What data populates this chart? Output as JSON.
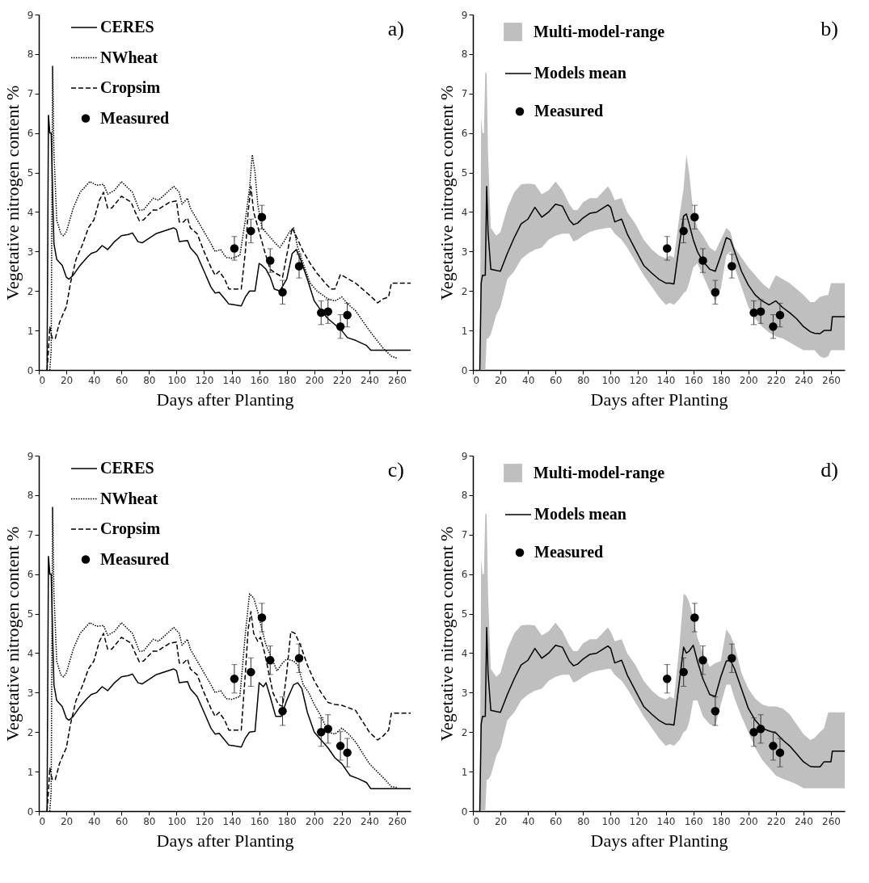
{
  "chart_data": [
    {
      "type": "line",
      "annotations": [
        "a)"
      ],
      "xlabel": "Days after Planting",
      "ylabel": "Vegetative nitrogen content %",
      "xlim": [
        0,
        270
      ],
      "xticks": [
        0,
        20,
        40,
        60,
        80,
        100,
        120,
        140,
        160,
        180,
        200,
        220,
        240,
        260
      ],
      "ylim": [
        0,
        9
      ],
      "yticks": [
        0,
        1,
        2,
        3,
        4,
        5,
        6,
        7,
        8,
        9
      ],
      "legend": "top left",
      "series": [
        {
          "name": "CERES",
          "type": "line",
          "line_style": "solid",
          "color": "#000000",
          "x": [
            6,
            7,
            8,
            9,
            10,
            11,
            13,
            17,
            20,
            22,
            25,
            30,
            35,
            38,
            42,
            46,
            50,
            55,
            60,
            65,
            68,
            72,
            75,
            85,
            98,
            100,
            102,
            108,
            110,
            115,
            120,
            125,
            128,
            131,
            135,
            138,
            142,
            147,
            150,
            153,
            157,
            160,
            162,
            165,
            168,
            171,
            175,
            180,
            184,
            187,
            190,
            195,
            200,
            205,
            210,
            215,
            220,
            224,
            230,
            238,
            241,
            270
          ],
          "values": [
            0,
            6.45,
            6.0,
            6.0,
            4.5,
            3.2,
            2.8,
            2.65,
            2.35,
            2.3,
            2.4,
            2.65,
            2.85,
            2.95,
            3.0,
            3.15,
            3.05,
            3.25,
            3.4,
            3.43,
            3.47,
            3.25,
            3.22,
            3.45,
            3.6,
            3.55,
            3.25,
            3.28,
            3.1,
            2.9,
            2.5,
            2.1,
            1.95,
            1.97,
            1.8,
            1.67,
            1.65,
            1.62,
            1.85,
            2.0,
            2.0,
            2.7,
            2.65,
            2.55,
            2.35,
            2.05,
            2.0,
            2.3,
            2.95,
            3.05,
            2.8,
            2.3,
            1.75,
            1.5,
            1.3,
            1.15,
            1.0,
            0.82,
            0.75,
            0.62,
            0.5,
            0.5
          ]
        },
        {
          "name": "NWheat",
          "type": "line",
          "line_style": "dotted",
          "color": "#000000",
          "x": [
            8,
            9,
            10,
            11,
            13,
            16,
            18,
            20,
            25,
            30,
            37,
            42,
            47,
            50,
            55,
            60,
            65,
            68,
            73,
            76,
            83,
            87,
            98,
            102,
            104,
            108,
            110,
            115,
            120,
            125,
            128,
            132,
            136,
            140,
            146,
            150,
            153,
            155,
            157,
            159,
            162,
            167,
            172,
            175,
            178,
            182,
            185,
            188,
            192,
            197,
            202,
            210,
            215,
            220,
            225,
            230,
            240,
            250,
            256,
            260
          ],
          "values": [
            0,
            0.5,
            7.7,
            5.5,
            3.8,
            3.45,
            3.4,
            3.5,
            4.1,
            4.5,
            4.77,
            4.68,
            4.7,
            4.45,
            4.55,
            4.77,
            4.6,
            4.5,
            4.05,
            4.05,
            4.35,
            4.3,
            4.65,
            4.5,
            4.2,
            4.35,
            4.1,
            3.8,
            3.5,
            3.2,
            3.0,
            3.05,
            2.85,
            2.83,
            2.9,
            3.8,
            4.6,
            5.45,
            5.0,
            4.2,
            3.6,
            3.4,
            3.2,
            3.1,
            3.25,
            3.5,
            3.6,
            3.1,
            2.7,
            2.2,
            2.0,
            1.8,
            1.75,
            1.85,
            1.65,
            1.5,
            1.0,
            0.55,
            0.35,
            0.3
          ]
        },
        {
          "name": "Cropsim",
          "type": "line",
          "line_style": "dashed",
          "color": "#000000",
          "x": [
            6,
            7,
            8,
            9,
            10,
            12,
            15,
            18,
            20,
            23,
            27,
            32,
            36,
            40,
            44,
            47,
            50,
            53,
            60,
            67,
            70,
            73,
            76,
            83,
            86,
            95,
            100,
            102,
            105,
            108,
            110,
            115,
            120,
            125,
            128,
            131,
            135,
            138,
            142,
            147,
            150,
            152,
            154,
            156,
            160,
            164,
            168,
            172,
            177,
            180,
            184,
            188,
            192,
            197,
            202,
            208,
            212,
            215,
            219,
            225,
            230,
            240,
            246,
            250,
            254,
            256,
            270
          ],
          "values": [
            0,
            0.5,
            1.1,
            0.9,
            0.8,
            0.8,
            1.2,
            1.45,
            1.6,
            2.2,
            2.8,
            3.2,
            3.6,
            3.8,
            4.3,
            4.5,
            4.1,
            4.1,
            4.4,
            4.25,
            4.0,
            3.78,
            3.8,
            4.05,
            4.05,
            4.25,
            4.28,
            3.75,
            3.75,
            3.85,
            3.6,
            3.45,
            3.0,
            2.6,
            2.4,
            2.5,
            2.3,
            2.05,
            2.05,
            2.05,
            3.0,
            4.0,
            4.65,
            4.0,
            3.5,
            3.0,
            2.55,
            2.45,
            2.35,
            2.9,
            3.6,
            3.3,
            3.0,
            2.7,
            2.45,
            2.2,
            2.05,
            2.05,
            2.42,
            2.3,
            2.2,
            1.9,
            1.7,
            1.8,
            1.85,
            2.2,
            2.2
          ]
        },
        {
          "name": "Measured",
          "type": "scatter",
          "marker": "circle",
          "color": "#000000",
          "x": [
            142,
            154,
            162,
            168,
            177,
            189,
            205,
            210,
            219,
            224
          ],
          "values": [
            3.08,
            3.52,
            3.87,
            2.77,
            1.97,
            2.63,
            1.45,
            1.48,
            1.1,
            1.39
          ],
          "errors": [
            0.3,
            0.3,
            0.3,
            0.3,
            0.3,
            0.3,
            0.3,
            0.3,
            0.3,
            0.3
          ]
        }
      ]
    },
    {
      "type": "line",
      "annotations": [
        "b)",
        "Multi-model-range"
      ],
      "xlabel": "Days after Planting",
      "ylabel": "Vegetative nitrogen content %",
      "xlim": [
        0,
        270
      ],
      "xticks": [
        0,
        20,
        40,
        60,
        80,
        100,
        120,
        140,
        160,
        180,
        200,
        220,
        240,
        260
      ],
      "ylim": [
        0,
        9
      ],
      "yticks": [
        0,
        1,
        2,
        3,
        4,
        5,
        6,
        7,
        8,
        9
      ],
      "legend": "top left",
      "series": [
        {
          "name": "Models mean",
          "type": "line",
          "line_style": "solid",
          "color": "#000000",
          "x": [
            5,
            6,
            7,
            8,
            9,
            10,
            11,
            13,
            17,
            20,
            25,
            30,
            35,
            40,
            45,
            50,
            55,
            60,
            65,
            70,
            73,
            76,
            80,
            85,
            90,
            98,
            100,
            103,
            108,
            112,
            118,
            124,
            130,
            135,
            140,
            143,
            146,
            150,
            153,
            155,
            157,
            160,
            163,
            167,
            172,
            176,
            180,
            184,
            187,
            190,
            195,
            200,
            205,
            210,
            215,
            220,
            225,
            230,
            235,
            240,
            245,
            248,
            252,
            255,
            258,
            260,
            261,
            270
          ],
          "values": [
            0,
            2.2,
            2.4,
            2.4,
            2.4,
            4.65,
            3.5,
            2.55,
            2.52,
            2.5,
            2.95,
            3.35,
            3.7,
            3.82,
            4.12,
            3.87,
            4.0,
            4.2,
            4.15,
            3.8,
            3.68,
            3.72,
            3.85,
            3.97,
            4.0,
            4.18,
            4.12,
            3.75,
            3.82,
            3.45,
            3.05,
            2.65,
            2.45,
            2.3,
            2.2,
            2.2,
            2.18,
            3.2,
            3.9,
            3.95,
            3.7,
            3.3,
            3.0,
            2.75,
            2.55,
            2.5,
            2.9,
            3.35,
            3.3,
            3.0,
            2.5,
            2.15,
            1.9,
            1.75,
            1.65,
            1.75,
            1.58,
            1.45,
            1.3,
            1.1,
            0.97,
            0.93,
            0.92,
            1.0,
            1.0,
            1.0,
            1.35,
            1.35
          ],
          "lower": [
            0,
            0,
            0,
            0,
            0,
            0.8,
            0.8,
            0.9,
            1.4,
            1.6,
            2.3,
            2.5,
            2.8,
            2.95,
            3.05,
            3.1,
            3.3,
            3.4,
            3.45,
            3.45,
            3.25,
            3.3,
            3.4,
            3.5,
            3.55,
            3.6,
            3.6,
            3.45,
            3.3,
            3.1,
            2.75,
            2.4,
            2.1,
            1.85,
            1.65,
            1.7,
            1.65,
            1.8,
            1.95,
            2.0,
            2.2,
            2.6,
            2.7,
            2.4,
            2.0,
            1.75,
            2.05,
            2.9,
            3.0,
            2.6,
            2.1,
            1.6,
            1.3,
            1.1,
            0.95,
            0.85,
            0.8,
            0.7,
            0.6,
            0.5,
            0.5,
            0.5,
            0.35,
            0.3,
            0.35,
            0.5,
            0.5,
            0.5
          ],
          "upper": [
            0,
            6.4,
            6.0,
            6.0,
            7.55,
            7.5,
            5.5,
            3.6,
            3.4,
            3.5,
            4.1,
            4.5,
            4.7,
            4.72,
            4.7,
            4.45,
            4.55,
            4.77,
            4.55,
            4.2,
            4.05,
            4.05,
            4.25,
            4.35,
            4.35,
            4.65,
            4.55,
            4.3,
            4.35,
            4.0,
            3.7,
            3.3,
            3.05,
            2.9,
            2.83,
            2.9,
            2.85,
            3.9,
            4.6,
            5.45,
            5.0,
            4.0,
            3.6,
            3.4,
            3.1,
            3.0,
            3.3,
            3.6,
            3.5,
            3.1,
            2.85,
            2.6,
            2.4,
            2.2,
            2.05,
            2.4,
            2.3,
            2.2,
            2.05,
            1.9,
            1.72,
            1.72,
            1.85,
            1.88,
            1.9,
            2.2,
            2.2,
            2.2
          ]
        },
        {
          "name": "Measured",
          "type": "scatter",
          "marker": "circle",
          "color": "#000000",
          "x": [
            141,
            153,
            161,
            167,
            176,
            188,
            204,
            209,
            218,
            223
          ],
          "values": [
            3.08,
            3.52,
            3.87,
            2.77,
            1.97,
            2.63,
            1.45,
            1.48,
            1.1,
            1.39
          ],
          "errors": [
            0.3,
            0.3,
            0.3,
            0.3,
            0.3,
            0.3,
            0.3,
            0.3,
            0.3,
            0.3
          ]
        }
      ]
    },
    {
      "type": "line",
      "annotations": [
        "c)"
      ],
      "xlabel": "Days after Planting",
      "ylabel": "Vegetative nitrogen content %",
      "xlim": [
        0,
        270
      ],
      "xticks": [
        0,
        20,
        40,
        60,
        80,
        100,
        120,
        140,
        160,
        180,
        200,
        220,
        240,
        260
      ],
      "ylim": [
        0,
        9
      ],
      "yticks": [
        0,
        1,
        2,
        3,
        4,
        5,
        6,
        7,
        8,
        9
      ],
      "legend": "top left",
      "series": [
        {
          "name": "CERES",
          "type": "line",
          "line_style": "solid",
          "color": "#000000",
          "x": [
            6,
            7,
            8,
            9,
            10,
            11,
            13,
            17,
            20,
            22,
            25,
            30,
            35,
            38,
            42,
            46,
            50,
            55,
            60,
            65,
            68,
            72,
            75,
            85,
            98,
            100,
            102,
            108,
            110,
            115,
            120,
            125,
            128,
            131,
            135,
            138,
            142,
            147,
            150,
            153,
            157,
            160,
            163,
            165,
            168,
            172,
            176,
            180,
            185,
            188,
            191,
            195,
            200,
            205,
            210,
            215,
            220,
            226,
            232,
            238,
            241,
            270
          ],
          "values": [
            0,
            6.45,
            6.0,
            6.0,
            4.5,
            3.2,
            2.8,
            2.65,
            2.35,
            2.3,
            2.4,
            2.65,
            2.85,
            2.95,
            3.0,
            3.15,
            3.05,
            3.25,
            3.4,
            3.43,
            3.47,
            3.25,
            3.22,
            3.45,
            3.6,
            3.55,
            3.25,
            3.28,
            3.1,
            2.9,
            2.5,
            2.1,
            1.95,
            1.97,
            1.8,
            1.67,
            1.65,
            1.62,
            1.85,
            2.0,
            2.02,
            3.25,
            3.15,
            3.25,
            2.9,
            2.4,
            2.4,
            2.8,
            3.2,
            3.25,
            3.1,
            2.5,
            2.0,
            1.8,
            1.6,
            1.35,
            1.2,
            0.9,
            0.82,
            0.72,
            0.57,
            0.57
          ]
        },
        {
          "name": "NWheat",
          "type": "line",
          "line_style": "dotted",
          "color": "#000000",
          "x": [
            8,
            9,
            10,
            11,
            13,
            16,
            18,
            20,
            25,
            30,
            37,
            42,
            47,
            50,
            55,
            60,
            65,
            68,
            73,
            76,
            83,
            87,
            98,
            102,
            104,
            108,
            110,
            115,
            120,
            125,
            128,
            132,
            136,
            140,
            146,
            150,
            153,
            156,
            159,
            162,
            165,
            170,
            173,
            177,
            180,
            185,
            188,
            192,
            196,
            200,
            205,
            210,
            215,
            220,
            225,
            230,
            240,
            250,
            256,
            260
          ],
          "values": [
            0,
            0.5,
            7.7,
            5.5,
            3.8,
            3.45,
            3.4,
            3.5,
            4.1,
            4.5,
            4.77,
            4.68,
            4.7,
            4.45,
            4.55,
            4.77,
            4.6,
            4.5,
            4.05,
            4.05,
            4.35,
            4.3,
            4.65,
            4.5,
            4.2,
            4.35,
            4.1,
            3.8,
            3.5,
            3.2,
            3.0,
            3.05,
            2.85,
            2.83,
            2.9,
            4.5,
            5.5,
            5.4,
            5.05,
            4.6,
            4.2,
            3.8,
            3.55,
            3.75,
            3.85,
            3.8,
            3.7,
            3.2,
            3.0,
            2.7,
            2.4,
            2.0,
            1.95,
            2.1,
            1.95,
            1.75,
            1.2,
            0.85,
            0.62,
            0.6
          ]
        },
        {
          "name": "Cropsim",
          "type": "line",
          "line_style": "dashed",
          "color": "#000000",
          "x": [
            6,
            7,
            8,
            9,
            10,
            12,
            15,
            18,
            20,
            23,
            27,
            32,
            36,
            40,
            44,
            47,
            50,
            53,
            60,
            67,
            70,
            73,
            76,
            83,
            86,
            95,
            100,
            102,
            105,
            108,
            110,
            115,
            120,
            125,
            128,
            131,
            135,
            138,
            142,
            147,
            150,
            152,
            154,
            156,
            159,
            161,
            164,
            167,
            170,
            174,
            177,
            180,
            183,
            186,
            190,
            195,
            200,
            205,
            210,
            215,
            220,
            230,
            240,
            246,
            250,
            254,
            256,
            270
          ],
          "values": [
            0,
            0.5,
            1.1,
            0.9,
            0.8,
            0.8,
            1.2,
            1.45,
            1.6,
            2.2,
            2.8,
            3.2,
            3.6,
            3.8,
            4.3,
            4.5,
            4.1,
            4.1,
            4.4,
            4.25,
            4.0,
            3.78,
            3.8,
            4.05,
            4.05,
            4.25,
            4.28,
            3.75,
            3.75,
            3.85,
            3.6,
            3.45,
            3.0,
            2.6,
            2.4,
            2.5,
            2.3,
            2.05,
            2.05,
            2.05,
            3.5,
            4.6,
            5.05,
            4.5,
            4.3,
            4.4,
            4.0,
            3.5,
            3.0,
            2.7,
            2.65,
            3.5,
            4.55,
            4.5,
            4.2,
            3.7,
            3.3,
            3.0,
            2.75,
            2.7,
            2.68,
            2.55,
            2.0,
            1.8,
            1.9,
            2.05,
            2.48,
            2.48
          ]
        },
        {
          "name": "Measured",
          "type": "scatter",
          "marker": "circle",
          "color": "#000000",
          "x": [
            142,
            154,
            162,
            168,
            177,
            189,
            205,
            210,
            219,
            224
          ],
          "values": [
            3.35,
            3.52,
            4.9,
            3.82,
            2.53,
            3.87,
            2.0,
            2.08,
            1.65,
            1.48
          ],
          "errors": [
            0.36,
            0.36,
            0.36,
            0.36,
            0.36,
            0.36,
            0.36,
            0.36,
            0.36,
            0.36
          ]
        }
      ]
    },
    {
      "type": "line",
      "annotations": [
        "d)",
        "Multi-model-range"
      ],
      "xlabel": "Days after Planting",
      "ylabel": "Vegetative nitrogen content %",
      "xlim": [
        0,
        270
      ],
      "xticks": [
        0,
        20,
        40,
        60,
        80,
        100,
        120,
        140,
        160,
        180,
        200,
        220,
        240,
        260
      ],
      "ylim": [
        0,
        9
      ],
      "yticks": [
        0,
        1,
        2,
        3,
        4,
        5,
        6,
        7,
        8,
        9
      ],
      "legend": "top left",
      "series": [
        {
          "name": "Models mean",
          "type": "line",
          "line_style": "solid",
          "color": "#000000",
          "x": [
            5,
            6,
            7,
            8,
            9,
            10,
            11,
            13,
            17,
            20,
            25,
            30,
            35,
            40,
            45,
            50,
            55,
            60,
            65,
            70,
            73,
            76,
            80,
            85,
            90,
            98,
            100,
            103,
            108,
            112,
            118,
            124,
            130,
            135,
            140,
            143,
            146,
            150,
            153,
            155,
            157,
            160,
            163,
            167,
            172,
            176,
            180,
            184,
            187,
            190,
            195,
            200,
            205,
            210,
            215,
            220,
            225,
            230,
            235,
            240,
            245,
            248,
            252,
            255,
            258,
            260,
            261,
            270
          ],
          "values": [
            0,
            2.2,
            2.4,
            2.4,
            2.4,
            4.65,
            3.5,
            2.55,
            2.52,
            2.5,
            2.95,
            3.35,
            3.7,
            3.82,
            4.12,
            3.87,
            4.0,
            4.2,
            4.15,
            3.8,
            3.68,
            3.72,
            3.85,
            3.97,
            4.0,
            4.18,
            4.12,
            3.75,
            3.82,
            3.45,
            3.05,
            2.65,
            2.45,
            2.3,
            2.2,
            2.2,
            2.18,
            3.3,
            4.15,
            4.0,
            4.05,
            4.2,
            3.8,
            3.35,
            2.95,
            2.9,
            3.4,
            3.8,
            3.82,
            3.6,
            3.1,
            2.6,
            2.3,
            2.1,
            2.03,
            1.98,
            1.8,
            1.65,
            1.45,
            1.25,
            1.13,
            1.12,
            1.12,
            1.25,
            1.25,
            1.25,
            1.52,
            1.52
          ],
          "lower": [
            0,
            0,
            0,
            0,
            0,
            0.8,
            0.8,
            0.9,
            1.4,
            1.6,
            2.3,
            2.5,
            2.8,
            2.95,
            3.05,
            3.1,
            3.3,
            3.4,
            3.45,
            3.45,
            3.25,
            3.3,
            3.4,
            3.5,
            3.55,
            3.6,
            3.6,
            3.45,
            3.3,
            3.1,
            2.75,
            2.4,
            2.1,
            1.85,
            1.65,
            1.7,
            1.65,
            1.8,
            2.0,
            2.05,
            2.25,
            2.8,
            2.8,
            2.4,
            2.2,
            2.15,
            2.7,
            3.2,
            3.2,
            2.85,
            2.4,
            2.0,
            1.6,
            1.3,
            1.1,
            0.9,
            0.82,
            0.75,
            0.68,
            0.58,
            0.58,
            0.58,
            0.58,
            0.58,
            0.58,
            0.58,
            0.58,
            0.58
          ],
          "upper": [
            0,
            6.4,
            6.0,
            6.0,
            7.55,
            7.5,
            5.5,
            3.6,
            3.4,
            3.5,
            4.1,
            4.5,
            4.7,
            4.72,
            4.7,
            4.45,
            4.55,
            4.77,
            4.55,
            4.2,
            4.05,
            4.05,
            4.25,
            4.35,
            4.35,
            4.65,
            4.55,
            4.3,
            4.35,
            4.0,
            3.7,
            3.3,
            3.05,
            2.9,
            2.83,
            2.9,
            2.85,
            4.2,
            5.5,
            5.45,
            5.3,
            4.9,
            4.4,
            4.0,
            3.65,
            3.75,
            3.8,
            4.6,
            4.45,
            4.2,
            3.5,
            3.1,
            2.85,
            2.7,
            2.65,
            2.65,
            2.6,
            2.45,
            2.2,
            1.95,
            1.8,
            1.85,
            2.0,
            2.1,
            2.5,
            2.5,
            2.5,
            2.5
          ]
        },
        {
          "name": "Measured",
          "type": "scatter",
          "marker": "circle",
          "color": "#000000",
          "x": [
            141,
            153,
            161,
            167,
            176,
            188,
            204,
            209,
            218,
            223
          ],
          "values": [
            3.35,
            3.52,
            4.9,
            3.82,
            2.53,
            3.87,
            2.0,
            2.08,
            1.65,
            1.48
          ],
          "errors": [
            0.36,
            0.36,
            0.36,
            0.36,
            0.36,
            0.36,
            0.36,
            0.36,
            0.36,
            0.36
          ]
        }
      ]
    }
  ]
}
